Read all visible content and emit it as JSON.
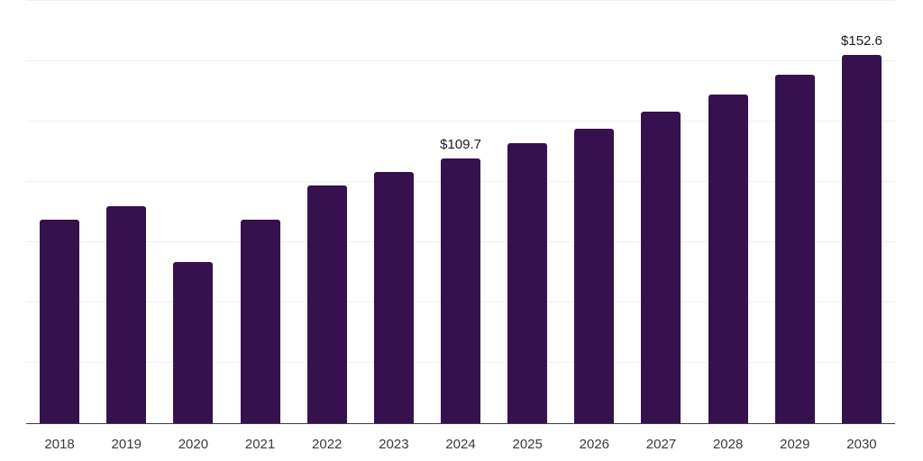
{
  "chart_data": {
    "type": "bar",
    "categories": [
      "2018",
      "2019",
      "2020",
      "2021",
      "2022",
      "2023",
      "2024",
      "2025",
      "2026",
      "2027",
      "2028",
      "2029",
      "2030"
    ],
    "values": [
      84.5,
      89.9,
      66.8,
      84.5,
      98.5,
      104.1,
      109.7,
      116.0,
      122.0,
      129.1,
      136.2,
      144.4,
      152.6
    ],
    "point_labels": [
      "",
      "",
      "",
      "",
      "",
      "",
      "$109.7",
      "",
      "",
      "",
      "",
      "",
      "$152.6"
    ],
    "title": "",
    "xlabel": "",
    "ylabel": "",
    "ylim": [
      0,
      175
    ],
    "gridline_step": 25,
    "grid": "horizontal",
    "legend": "none",
    "y_tick_labels_visible": false
  },
  "style": {
    "bar_color": "#36114E",
    "gridline_color": "#f1f1f1",
    "axis_line_color": "#3c3c3c",
    "tick_label_color": "#3a3a3a",
    "data_label_color": "#1a1a1a",
    "background_color": "#ffffff"
  }
}
